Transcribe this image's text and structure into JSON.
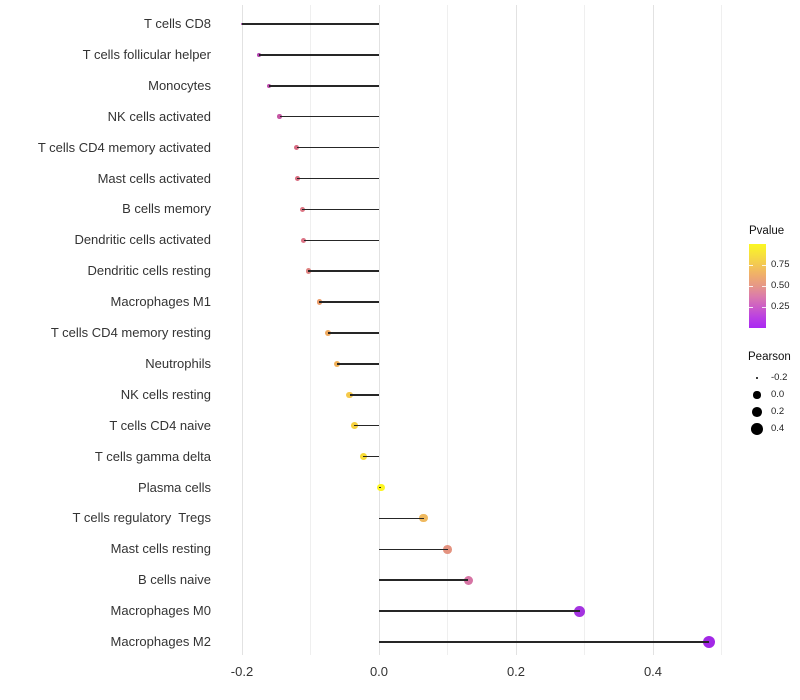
{
  "chart_data": {
    "type": "lollipop",
    "orientation": "horizontal",
    "title": "",
    "xlabel": "",
    "ylabel": "",
    "x_axis": {
      "tick_values": [
        -0.2,
        0.0,
        0.2,
        0.4
      ],
      "tick_labels": [
        "-0.2",
        "0.0",
        "0.2",
        "0.4"
      ],
      "major_gridlines": [
        -0.2,
        0.0,
        0.2,
        0.4
      ],
      "minor_gridlines": [
        -0.1,
        0.1,
        0.3,
        0.5
      ],
      "range": [
        -0.235,
        0.523
      ],
      "grid": true
    },
    "value_encoding": {
      "x": "Pearson correlation",
      "dot_size": "Pearson",
      "dot_color": "Pvalue"
    },
    "points": [
      {
        "label": "T cells CD8",
        "pearson": -0.2,
        "color": "#A13CA3"
      },
      {
        "label": "T cells follicular helper",
        "pearson": -0.175,
        "color": "#B445B2"
      },
      {
        "label": "Monocytes",
        "pearson": -0.16,
        "color": "#BF4DAE"
      },
      {
        "label": "NK cells activated",
        "pearson": -0.145,
        "color": "#C657A4"
      },
      {
        "label": "T cells CD4 memory activated",
        "pearson": -0.12,
        "color": "#D76981"
      },
      {
        "label": "Mast cells activated",
        "pearson": -0.119,
        "color": "#D96C80"
      },
      {
        "label": "B cells memory",
        "pearson": -0.112,
        "color": "#DC7583"
      },
      {
        "label": "Dendritic cells activated",
        "pearson": -0.11,
        "color": "#DB7385"
      },
      {
        "label": "Dendritic cells resting",
        "pearson": -0.103,
        "color": "#DF8280"
      },
      {
        "label": "Macrophages M1",
        "pearson": -0.087,
        "color": "#EC9C69"
      },
      {
        "label": "T cells CD4 memory resting",
        "pearson": -0.075,
        "color": "#F0AA5F"
      },
      {
        "label": "Neutrophils",
        "pearson": -0.061,
        "color": "#F1B158"
      },
      {
        "label": "NK cells resting",
        "pearson": -0.043,
        "color": "#F5C94A"
      },
      {
        "label": "T cells CD4 naive",
        "pearson": -0.036,
        "color": "#F6D13F"
      },
      {
        "label": "T cells gamma delta",
        "pearson": -0.023,
        "color": "#F8DC38"
      },
      {
        "label": "Plasma cells",
        "pearson": 0.003,
        "color": "#FCF521"
      },
      {
        "label": "T cells regulatory  Tregs",
        "pearson": 0.065,
        "color": "#EFB95F"
      },
      {
        "label": "Mast cells resting",
        "pearson": 0.1,
        "color": "#E49380"
      },
      {
        "label": "B cells naive",
        "pearson": 0.13,
        "color": "#D674A4"
      },
      {
        "label": "Macrophages M0",
        "pearson": 0.293,
        "color": "#A434E0"
      },
      {
        "label": "Macrophages M2",
        "pearson": 0.482,
        "color": "#A228E6"
      }
    ],
    "legend": {
      "pvalue": {
        "title": "Pvalue",
        "tick_labels": [
          "0.75",
          "0.50",
          "0.25"
        ],
        "tick_values": [
          0.75,
          0.5,
          0.25
        ],
        "bar_range": [
          0,
          1
        ],
        "gradient_stops_top_to_bottom": [
          "#FBF722",
          "#F7E13C",
          "#F3C754",
          "#EFAD6C",
          "#E69788",
          "#DB7BAB",
          "#CC5DC7",
          "#BA3FE3",
          "#A928F2"
        ]
      },
      "pearson": {
        "title": "Pearson",
        "entries": [
          {
            "label": "-0.2",
            "value": -0.2
          },
          {
            "label": "0.0",
            "value": 0.0
          },
          {
            "label": "0.2",
            "value": 0.2
          },
          {
            "label": "0.4",
            "value": 0.4
          }
        ],
        "dot_color": "#000000"
      }
    },
    "stem_color": "#262626",
    "background_color": "#FFFFFF"
  }
}
